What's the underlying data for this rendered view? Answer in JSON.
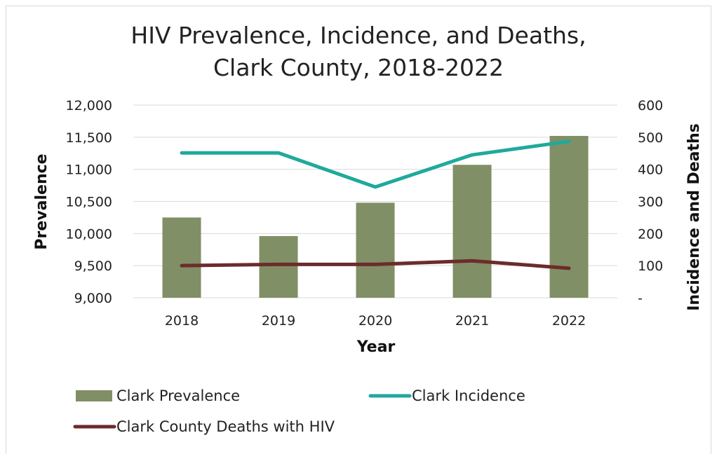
{
  "chart_data": {
    "type": "bar",
    "title_line1": "HIV Prevalence, Incidence, and Deaths,",
    "title_line2": "Clark County, 2018-2022",
    "xlabel": "Year",
    "ylabel_left": "Prevalence",
    "ylabel_right": "Incidence and Deaths",
    "categories": [
      "2018",
      "2019",
      "2020",
      "2021",
      "2022"
    ],
    "y_left": {
      "range": [
        9000,
        12000
      ],
      "ticks": [
        9000,
        9500,
        10000,
        10500,
        11000,
        11500,
        12000
      ],
      "tick_labels": [
        "9,000",
        "9,500",
        "10,000",
        "10,500",
        "11,000",
        "11,500",
        "12,000"
      ]
    },
    "y_right": {
      "range": [
        0,
        600
      ],
      "ticks": [
        0,
        100,
        200,
        300,
        400,
        500,
        600
      ],
      "tick_labels": [
        "-",
        "100",
        "200",
        "300",
        "400",
        "500",
        "600"
      ]
    },
    "grid": true,
    "legend_position": "bottom",
    "series": [
      {
        "name": "Clark Prevalence",
        "kind": "bar",
        "axis": "left",
        "color": "#808f65",
        "values": [
          10250,
          9960,
          10480,
          11070,
          11520
        ]
      },
      {
        "name": "Clark Incidence",
        "kind": "line",
        "axis": "right",
        "color": "#20a99d",
        "values": [
          451,
          451,
          345,
          445,
          487
        ]
      },
      {
        "name": "Clark County Deaths with HIV",
        "kind": "line",
        "axis": "right",
        "color": "#6b2c2c",
        "values": [
          100,
          104,
          104,
          115,
          92
        ]
      }
    ]
  }
}
